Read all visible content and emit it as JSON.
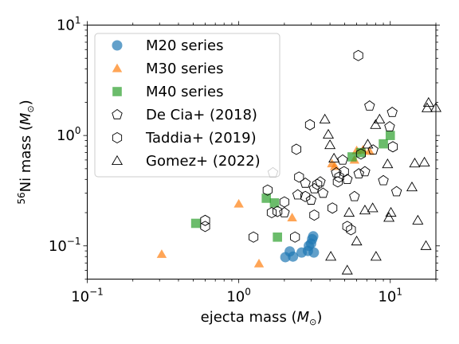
{
  "chart_data": {
    "type": "scatter",
    "title": "",
    "xlabel_main": "ejecta mass (",
    "xlabel_unit": "M",
    "xlabel_sub": "⊙",
    "xlabel_end": ")",
    "ylabel_sup": "56",
    "ylabel_main": "Ni mass (",
    "ylabel_unit": "M",
    "ylabel_sub": "⊙",
    "ylabel_end": ")",
    "x_scale": "log",
    "y_scale": "log",
    "xlim": [
      0.1,
      20
    ],
    "ylim": [
      0.05,
      10
    ],
    "x_ticks": [
      {
        "value": 0.1,
        "base": "10",
        "exp": "−1"
      },
      {
        "value": 1,
        "base": "10",
        "exp": "0"
      },
      {
        "value": 10,
        "base": "10",
        "exp": "1"
      }
    ],
    "y_ticks": [
      {
        "value": 0.1,
        "base": "10",
        "exp": "−1"
      },
      {
        "value": 1,
        "base": "10",
        "exp": "0"
      },
      {
        "value": 10,
        "base": "10",
        "exp": "1"
      }
    ],
    "grid": false,
    "legend_position": "top-left",
    "series": [
      {
        "name": "M20 series",
        "marker": "circle",
        "color": "#1f77b4",
        "filled": true,
        "points": [
          [
            2.03,
            0.079
          ],
          [
            2.17,
            0.089
          ],
          [
            2.28,
            0.08
          ],
          [
            2.6,
            0.087
          ],
          [
            2.86,
            0.09
          ],
          [
            2.9,
            0.1
          ],
          [
            3.0,
            0.105
          ],
          [
            3.05,
            0.115
          ],
          [
            3.1,
            0.122
          ],
          [
            3.13,
            0.087
          ]
        ]
      },
      {
        "name": "M30 series",
        "marker": "triangle",
        "color": "#ff7f0e",
        "filled": true,
        "points": [
          [
            0.31,
            0.084
          ],
          [
            1.0,
            0.24
          ],
          [
            1.36,
            0.069
          ],
          [
            2.25,
            0.18
          ],
          [
            4.12,
            0.555
          ],
          [
            4.3,
            0.525
          ],
          [
            5.8,
            0.6
          ],
          [
            6.0,
            0.73
          ],
          [
            6.6,
            0.74
          ],
          [
            7.3,
            0.72
          ]
        ]
      },
      {
        "name": "M40 series",
        "marker": "square",
        "color": "#2ca02c",
        "filled": true,
        "points": [
          [
            0.52,
            0.16
          ],
          [
            1.52,
            0.27
          ],
          [
            1.72,
            0.245
          ],
          [
            1.8,
            0.12
          ],
          [
            5.6,
            0.64
          ],
          [
            6.4,
            0.7
          ],
          [
            9.0,
            0.84
          ],
          [
            10.0,
            1.0
          ]
        ]
      },
      {
        "name": "De Cia+ (2018)",
        "marker": "pentagon",
        "color": "#000000",
        "filled": false,
        "points": [
          [
            1.68,
            0.46
          ],
          [
            2.0,
            0.2
          ],
          [
            2.45,
            0.29
          ],
          [
            2.75,
            0.37
          ],
          [
            3.0,
            0.26
          ],
          [
            3.15,
            0.33
          ],
          [
            3.45,
            0.38
          ],
          [
            3.6,
            0.3
          ],
          [
            4.4,
            0.46
          ],
          [
            4.85,
            0.6
          ],
          [
            5.2,
            0.4
          ],
          [
            5.8,
            0.28
          ],
          [
            6.2,
            0.45
          ],
          [
            6.8,
            0.47
          ],
          [
            7.3,
            1.85
          ],
          [
            7.7,
            0.74
          ],
          [
            9.0,
            0.39
          ],
          [
            9.9,
            1.2
          ],
          [
            10.3,
            1.62
          ],
          [
            11.0,
            0.31
          ]
        ]
      },
      {
        "name": "Taddia+ (2019)",
        "marker": "hexagon",
        "color": "#000000",
        "filled": false,
        "points": [
          [
            0.6,
            0.17
          ],
          [
            0.6,
            0.15
          ],
          [
            1.25,
            0.12
          ],
          [
            1.55,
            0.32
          ],
          [
            1.65,
            0.2
          ],
          [
            1.8,
            0.205
          ],
          [
            2.0,
            0.25
          ],
          [
            2.35,
            0.12
          ],
          [
            2.4,
            0.75
          ],
          [
            2.5,
            0.42
          ],
          [
            2.75,
            0.28
          ],
          [
            2.95,
            1.25
          ],
          [
            3.15,
            0.19
          ],
          [
            3.3,
            0.36
          ],
          [
            4.15,
            0.22
          ],
          [
            4.5,
            0.38
          ],
          [
            4.6,
            0.42
          ],
          [
            4.95,
            0.47
          ],
          [
            5.2,
            0.15
          ],
          [
            5.5,
            0.14
          ],
          [
            6.15,
            5.3
          ],
          [
            6.4,
            0.68
          ],
          [
            10.4,
            0.79
          ]
        ]
      },
      {
        "name": "Gomez+ (2022)",
        "marker": "triangle",
        "color": "#000000",
        "filled": false,
        "points": [
          [
            3.7,
            1.4
          ],
          [
            3.9,
            1.02
          ],
          [
            4.0,
            0.82
          ],
          [
            4.05,
            0.08
          ],
          [
            4.25,
            0.62
          ],
          [
            5.2,
            0.06
          ],
          [
            5.35,
            0.2
          ],
          [
            6.0,
            0.11
          ],
          [
            6.8,
            0.21
          ],
          [
            7.1,
            0.83
          ],
          [
            7.65,
            0.22
          ],
          [
            8.0,
            1.25
          ],
          [
            8.05,
            0.08
          ],
          [
            8.5,
            1.4
          ],
          [
            9.6,
            0.55
          ],
          [
            9.8,
            0.18
          ],
          [
            10.1,
            0.2
          ],
          [
            13.9,
            0.34
          ],
          [
            14.5,
            0.56
          ],
          [
            15.2,
            0.17
          ],
          [
            16.8,
            0.57
          ],
          [
            17.2,
            0.1
          ],
          [
            17.5,
            1.77
          ],
          [
            17.9,
            1.98
          ],
          [
            20.0,
            1.78
          ]
        ]
      }
    ]
  }
}
